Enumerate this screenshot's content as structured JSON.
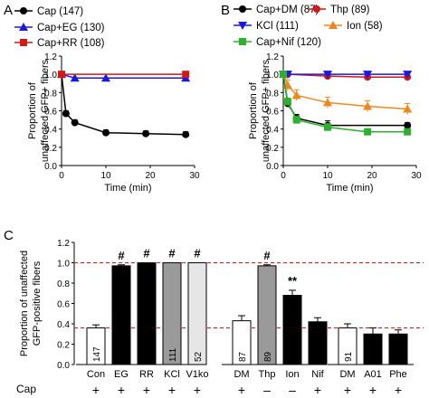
{
  "chart_data": [
    {
      "panel": "A",
      "type": "line",
      "xlabel": "Time (min)",
      "ylabel": [
        "Proportion of",
        "unaffected GFP+ fibers"
      ],
      "xlim": [
        0,
        30
      ],
      "ylim": [
        0,
        1.2
      ],
      "xticks": [
        0,
        10,
        20,
        30
      ],
      "yticks": [
        0.0,
        0.2,
        0.4,
        0.6,
        0.8,
        1.0,
        1.2
      ],
      "legend_position": "top",
      "series": [
        {
          "name": "Cap (147)",
          "color": "#000000",
          "marker": "circle",
          "x": [
            0,
            1,
            3,
            10,
            19,
            28
          ],
          "y": [
            1.0,
            0.57,
            0.47,
            0.36,
            0.35,
            0.34
          ],
          "err": [
            0,
            0.03,
            0.03,
            0.03,
            0.03,
            0.03
          ]
        },
        {
          "name": "Cap+EG (130)",
          "color": "#1a1adc",
          "marker": "triangle",
          "x": [
            0,
            3,
            10,
            28
          ],
          "y": [
            1.0,
            0.96,
            0.96,
            0.96
          ],
          "err": [
            0,
            0,
            0,
            0
          ]
        },
        {
          "name": "Cap+RR (108)",
          "color": "#d01919",
          "marker": "square",
          "x": [
            0,
            28
          ],
          "y": [
            1.0,
            1.0
          ],
          "err": [
            0,
            0
          ]
        }
      ]
    },
    {
      "panel": "B",
      "type": "line",
      "xlabel": "Time (min)",
      "ylabel": [
        "Proportion of",
        "unaffected GFP+ fibers"
      ],
      "xlim": [
        0,
        30
      ],
      "ylim": [
        0,
        1.2
      ],
      "xticks": [
        0,
        10,
        20,
        30
      ],
      "yticks": [
        0.0,
        0.2,
        0.4,
        0.6,
        0.8,
        1.0,
        1.2
      ],
      "legend_position": "top",
      "series": [
        {
          "name": "Cap+DM (87)",
          "color": "#000000",
          "marker": "circle",
          "x": [
            0,
            1,
            3,
            10,
            28
          ],
          "y": [
            1.0,
            0.68,
            0.52,
            0.44,
            0.44
          ],
          "err": [
            0,
            0.04,
            0.04,
            0.05,
            0.03
          ]
        },
        {
          "name": "Thp (89)",
          "color": "#d01919",
          "marker": "circle",
          "x": [
            0,
            1,
            10,
            19,
            28
          ],
          "y": [
            1.0,
            1.0,
            0.98,
            0.97,
            0.97
          ],
          "err": [
            0,
            0,
            0,
            0,
            0
          ]
        },
        {
          "name": "KCl (111)",
          "color": "#1a1adc",
          "marker": "triangle-down",
          "x": [
            0,
            1,
            10,
            19,
            28
          ],
          "y": [
            1.0,
            1.0,
            1.0,
            1.0,
            1.0
          ],
          "err": [
            0,
            0,
            0,
            0,
            0
          ]
        },
        {
          "name": "Ion (58)",
          "color": "#f0871e",
          "marker": "triangle",
          "x": [
            0,
            1,
            3,
            10,
            19,
            28
          ],
          "y": [
            1.0,
            0.88,
            0.77,
            0.69,
            0.65,
            0.62
          ],
          "err": [
            0,
            0.06,
            0.06,
            0.06,
            0.06,
            0.06
          ]
        },
        {
          "name": "Cap+Nif (120)",
          "color": "#2db02d",
          "marker": "square",
          "x": [
            0,
            1,
            3,
            10,
            19,
            28
          ],
          "y": [
            1.0,
            0.7,
            0.5,
            0.42,
            0.37,
            0.37
          ],
          "err": [
            0,
            0.04,
            0.04,
            0.04,
            0.03,
            0.03
          ]
        }
      ]
    },
    {
      "panel": "C",
      "type": "bar",
      "ylabel": [
        "Proportion of unaffected",
        "GFP-positive fibers"
      ],
      "ylim": [
        0,
        1.2
      ],
      "yticks": [
        0.0,
        0.2,
        0.4,
        0.6,
        0.8,
        1.0,
        1.2
      ],
      "reference_lines": [
        1.0,
        0.36
      ],
      "cap_row_label": "Cap",
      "groups": [
        {
          "bars": [
            {
              "label": "Con",
              "value": 0.36,
              "err": 0.03,
              "n": "147",
              "fill": "#ffffff",
              "mark": "",
              "cap": "+"
            },
            {
              "label": "EG",
              "value": 0.97,
              "err": 0.01,
              "n": "130",
              "fill": "#000000",
              "mark": "#",
              "cap": "+"
            },
            {
              "label": "RR",
              "value": 1.0,
              "err": 0.0,
              "n": "108",
              "fill": "#000000",
              "mark": "#",
              "cap": "+"
            },
            {
              "label": "KCl",
              "value": 1.0,
              "err": 0.0,
              "n": "111",
              "fill": "#9a9a9a",
              "mark": "#",
              "cap": "+"
            },
            {
              "label": "V1ko",
              "value": 1.0,
              "err": 0.0,
              "n": "52",
              "fill": "#e6e6e6",
              "mark": "#",
              "cap": "+"
            }
          ]
        },
        {
          "bars": [
            {
              "label": "DM",
              "value": 0.43,
              "err": 0.05,
              "n": "87",
              "fill": "#ffffff",
              "mark": "",
              "cap": "+"
            },
            {
              "label": "Thp",
              "value": 0.97,
              "err": 0.01,
              "n": "89",
              "fill": "#9a9a9a",
              "mark": "#",
              "cap": "–"
            },
            {
              "label": "Ion",
              "value": 0.68,
              "err": 0.05,
              "n": "58",
              "fill": "#000000",
              "mark": "**",
              "cap": "–"
            },
            {
              "label": "Nif",
              "value": 0.42,
              "err": 0.04,
              "n": "120",
              "fill": "#000000",
              "mark": "",
              "cap": "+"
            }
          ]
        },
        {
          "bars": [
            {
              "label": "DM",
              "value": 0.36,
              "err": 0.04,
              "n": "91",
              "fill": "#ffffff",
              "mark": "",
              "cap": "+"
            },
            {
              "label": "A01",
              "value": 0.3,
              "err": 0.06,
              "n": "37",
              "fill": "#000000",
              "mark": "",
              "cap": "+"
            },
            {
              "label": "Phe",
              "value": 0.3,
              "err": 0.04,
              "n": "80",
              "fill": "#000000",
              "mark": "",
              "cap": "+"
            }
          ]
        }
      ]
    }
  ]
}
